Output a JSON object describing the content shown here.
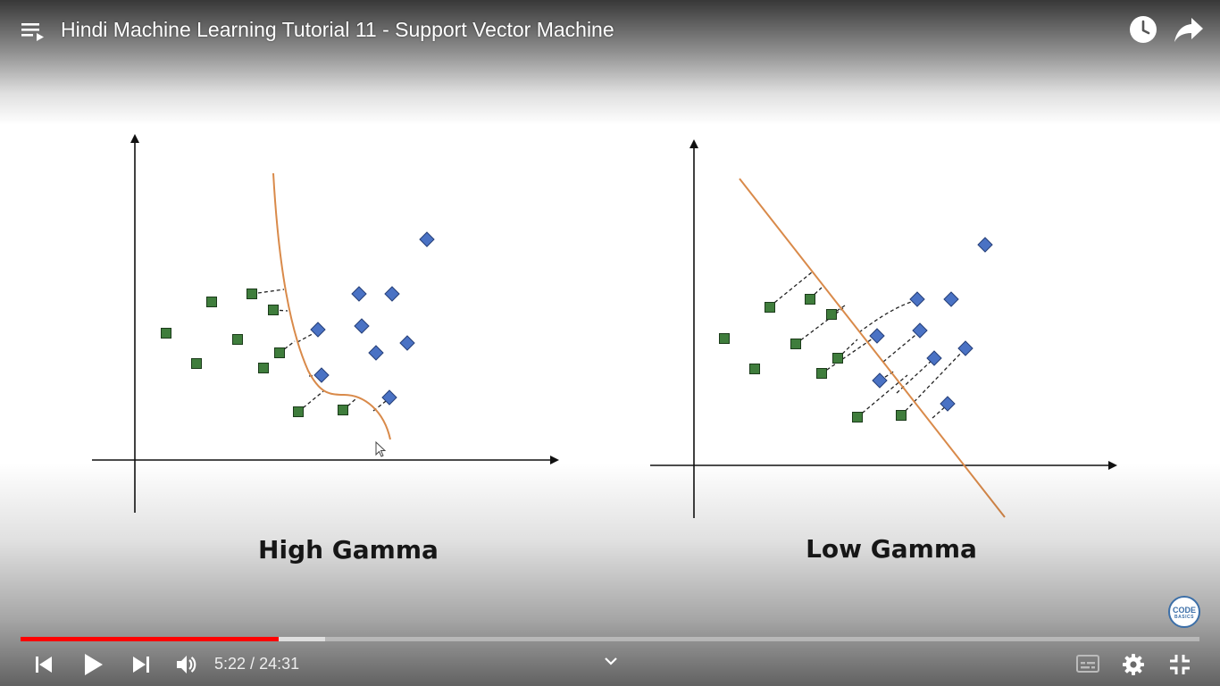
{
  "video": {
    "title": "Hindi Machine Learning Tutorial 11 - Support Vector Machine"
  },
  "slide": {
    "left_panel_label": "High Gamma",
    "right_panel_label": "Low Gamma",
    "colors": {
      "class_square": "#3f7d3c",
      "class_diamond": "#4a72c4",
      "boundary": "#d98a4a",
      "axis": "#111111"
    }
  },
  "watermark": {
    "line1": "CODE",
    "line2": "BASICS"
  },
  "controls": {
    "current_time": "5:22",
    "separator": " / ",
    "duration": "24:31",
    "progress_fraction": 0.219,
    "buffered_fraction": 0.258
  },
  "icons": {
    "playlist": "playlist-icon",
    "watch_later": "clock-icon",
    "share": "share-icon",
    "previous": "previous-icon",
    "play": "play-icon",
    "next": "next-icon",
    "volume": "volume-icon",
    "expand": "chevron-down-icon",
    "subtitles": "subtitles-icon",
    "settings": "gear-icon",
    "fullscreen": "exit-fullscreen-icon"
  },
  "colors": {
    "progress_played": "#ff0000"
  }
}
